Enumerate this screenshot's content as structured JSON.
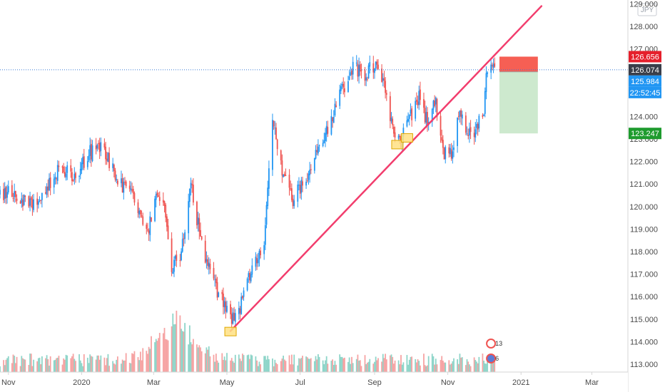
{
  "chart_data": {
    "type": "candlestick",
    "title": "",
    "unit_badge": "JPY",
    "ylim": [
      112.8,
      129.0
    ],
    "yticks": [
      113.0,
      114.0,
      115.0,
      116.0,
      117.0,
      118.0,
      119.0,
      120.0,
      121.0,
      122.0,
      123.0,
      124.0,
      125.0,
      126.0,
      127.0,
      128.0,
      129.0
    ],
    "ytick_labels": [
      "113.000",
      "114.000",
      "115.000",
      "116.000",
      "117.000",
      "118.000",
      "119.000",
      "120.000",
      "121.000",
      "122.000",
      "123.000",
      "124.000",
      "125.000",
      "126.000",
      "127.000",
      "128.000",
      "129.000"
    ],
    "xlim": [
      "2019-10-25",
      "2021-03-31"
    ],
    "xticks": [
      {
        "date": "2019-11-01",
        "label": "Nov"
      },
      {
        "date": "2020-01-01",
        "label": "2020"
      },
      {
        "date": "2020-03-01",
        "label": "Mar"
      },
      {
        "date": "2020-05-01",
        "label": "May"
      },
      {
        "date": "2020-07-01",
        "label": "Jul"
      },
      {
        "date": "2020-09-01",
        "label": "Sep"
      },
      {
        "date": "2020-11-01",
        "label": "Nov"
      },
      {
        "date": "2021-01-01",
        "label": "2021"
      },
      {
        "date": "2021-03-01",
        "label": "Mar"
      }
    ],
    "price_path": [
      [
        "2019-10-25",
        120.6
      ],
      [
        "2019-11-05",
        120.7
      ],
      [
        "2019-11-20",
        120.0
      ],
      [
        "2019-12-01",
        120.6
      ],
      [
        "2019-12-15",
        121.8
      ],
      [
        "2019-12-25",
        121.3
      ],
      [
        "2020-01-08",
        122.4
      ],
      [
        "2020-01-18",
        122.7
      ],
      [
        "2020-02-01",
        121.0
      ],
      [
        "2020-02-10",
        120.7
      ],
      [
        "2020-02-25",
        118.9
      ],
      [
        "2020-03-05",
        120.7
      ],
      [
        "2020-03-10",
        119.8
      ],
      [
        "2020-03-16",
        117.2
      ],
      [
        "2020-03-24",
        118.0
      ],
      [
        "2020-04-01",
        121.0
      ],
      [
        "2020-04-10",
        118.3
      ],
      [
        "2020-04-20",
        116.6
      ],
      [
        "2020-04-27",
        115.9
      ],
      [
        "2020-05-04",
        114.9
      ],
      [
        "2020-05-08",
        115.0
      ],
      [
        "2020-05-14",
        115.9
      ],
      [
        "2020-05-22",
        117.3
      ],
      [
        "2020-06-01",
        118.3
      ],
      [
        "2020-06-08",
        123.7
      ],
      [
        "2020-06-16",
        121.6
      ],
      [
        "2020-06-25",
        120.2
      ],
      [
        "2020-07-01",
        120.9
      ],
      [
        "2020-07-08",
        121.4
      ],
      [
        "2020-07-15",
        122.7
      ],
      [
        "2020-07-25",
        123.4
      ],
      [
        "2020-08-05",
        125.2
      ],
      [
        "2020-08-15",
        126.2
      ],
      [
        "2020-08-25",
        125.9
      ],
      [
        "2020-09-01",
        126.3
      ],
      [
        "2020-09-08",
        125.6
      ],
      [
        "2020-09-17",
        123.2
      ],
      [
        "2020-09-23",
        122.9
      ],
      [
        "2020-10-01",
        124.0
      ],
      [
        "2020-10-08",
        124.8
      ],
      [
        "2020-10-15",
        123.8
      ],
      [
        "2020-10-22",
        124.6
      ],
      [
        "2020-10-29",
        122.4
      ],
      [
        "2020-11-04",
        122.3
      ],
      [
        "2020-11-10",
        124.3
      ],
      [
        "2020-11-17",
        123.4
      ],
      [
        "2020-11-24",
        123.2
      ],
      [
        "2020-12-01",
        124.4
      ],
      [
        "2020-12-03",
        125.8
      ],
      [
        "2020-12-06",
        126.4
      ],
      [
        "2020-12-10",
        126.07
      ]
    ],
    "up_color": "#2196f3",
    "down_color": "#ef5350",
    "trendline": {
      "from": [
        "2020-05-04",
        114.47
      ],
      "to": [
        "2021-01-18",
        128.9
      ],
      "color": "#f23d6d"
    },
    "position": {
      "type": "short",
      "start_date": "2020-12-14",
      "end_date": "2021-01-15",
      "entry": 125.984,
      "stop": 126.656,
      "target": 123.247,
      "stop_color": "#f44336",
      "target_color": "#4caf50"
    },
    "marked_points": [
      {
        "date": "2020-05-04",
        "value": 114.45
      },
      {
        "date": "2020-09-20",
        "value": 122.75
      },
      {
        "date": "2020-09-28",
        "value": 123.05
      }
    ],
    "current_price": 126.074,
    "price_tags": [
      {
        "label": "126.656",
        "value": 126.656,
        "color": "#e5202c"
      },
      {
        "label": "126.074",
        "value": 126.074,
        "color": "#3a3f4a"
      },
      {
        "label": "125.984",
        "value": 125.984,
        "color": "#2196f3"
      },
      {
        "label": "22:52:45",
        "value": 125.6,
        "color": "#2196f3"
      },
      {
        "label": "123.247",
        "value": 123.247,
        "color": "#1e9b2e"
      }
    ],
    "volume": {
      "up_color": "#8ed5c9",
      "down_color": "#f6a3a3",
      "peak_date": "2020-03-20"
    },
    "events": [
      {
        "date": "2020-12-01",
        "label": "13"
      },
      {
        "date": "2020-12-01",
        "label": "6"
      }
    ]
  }
}
